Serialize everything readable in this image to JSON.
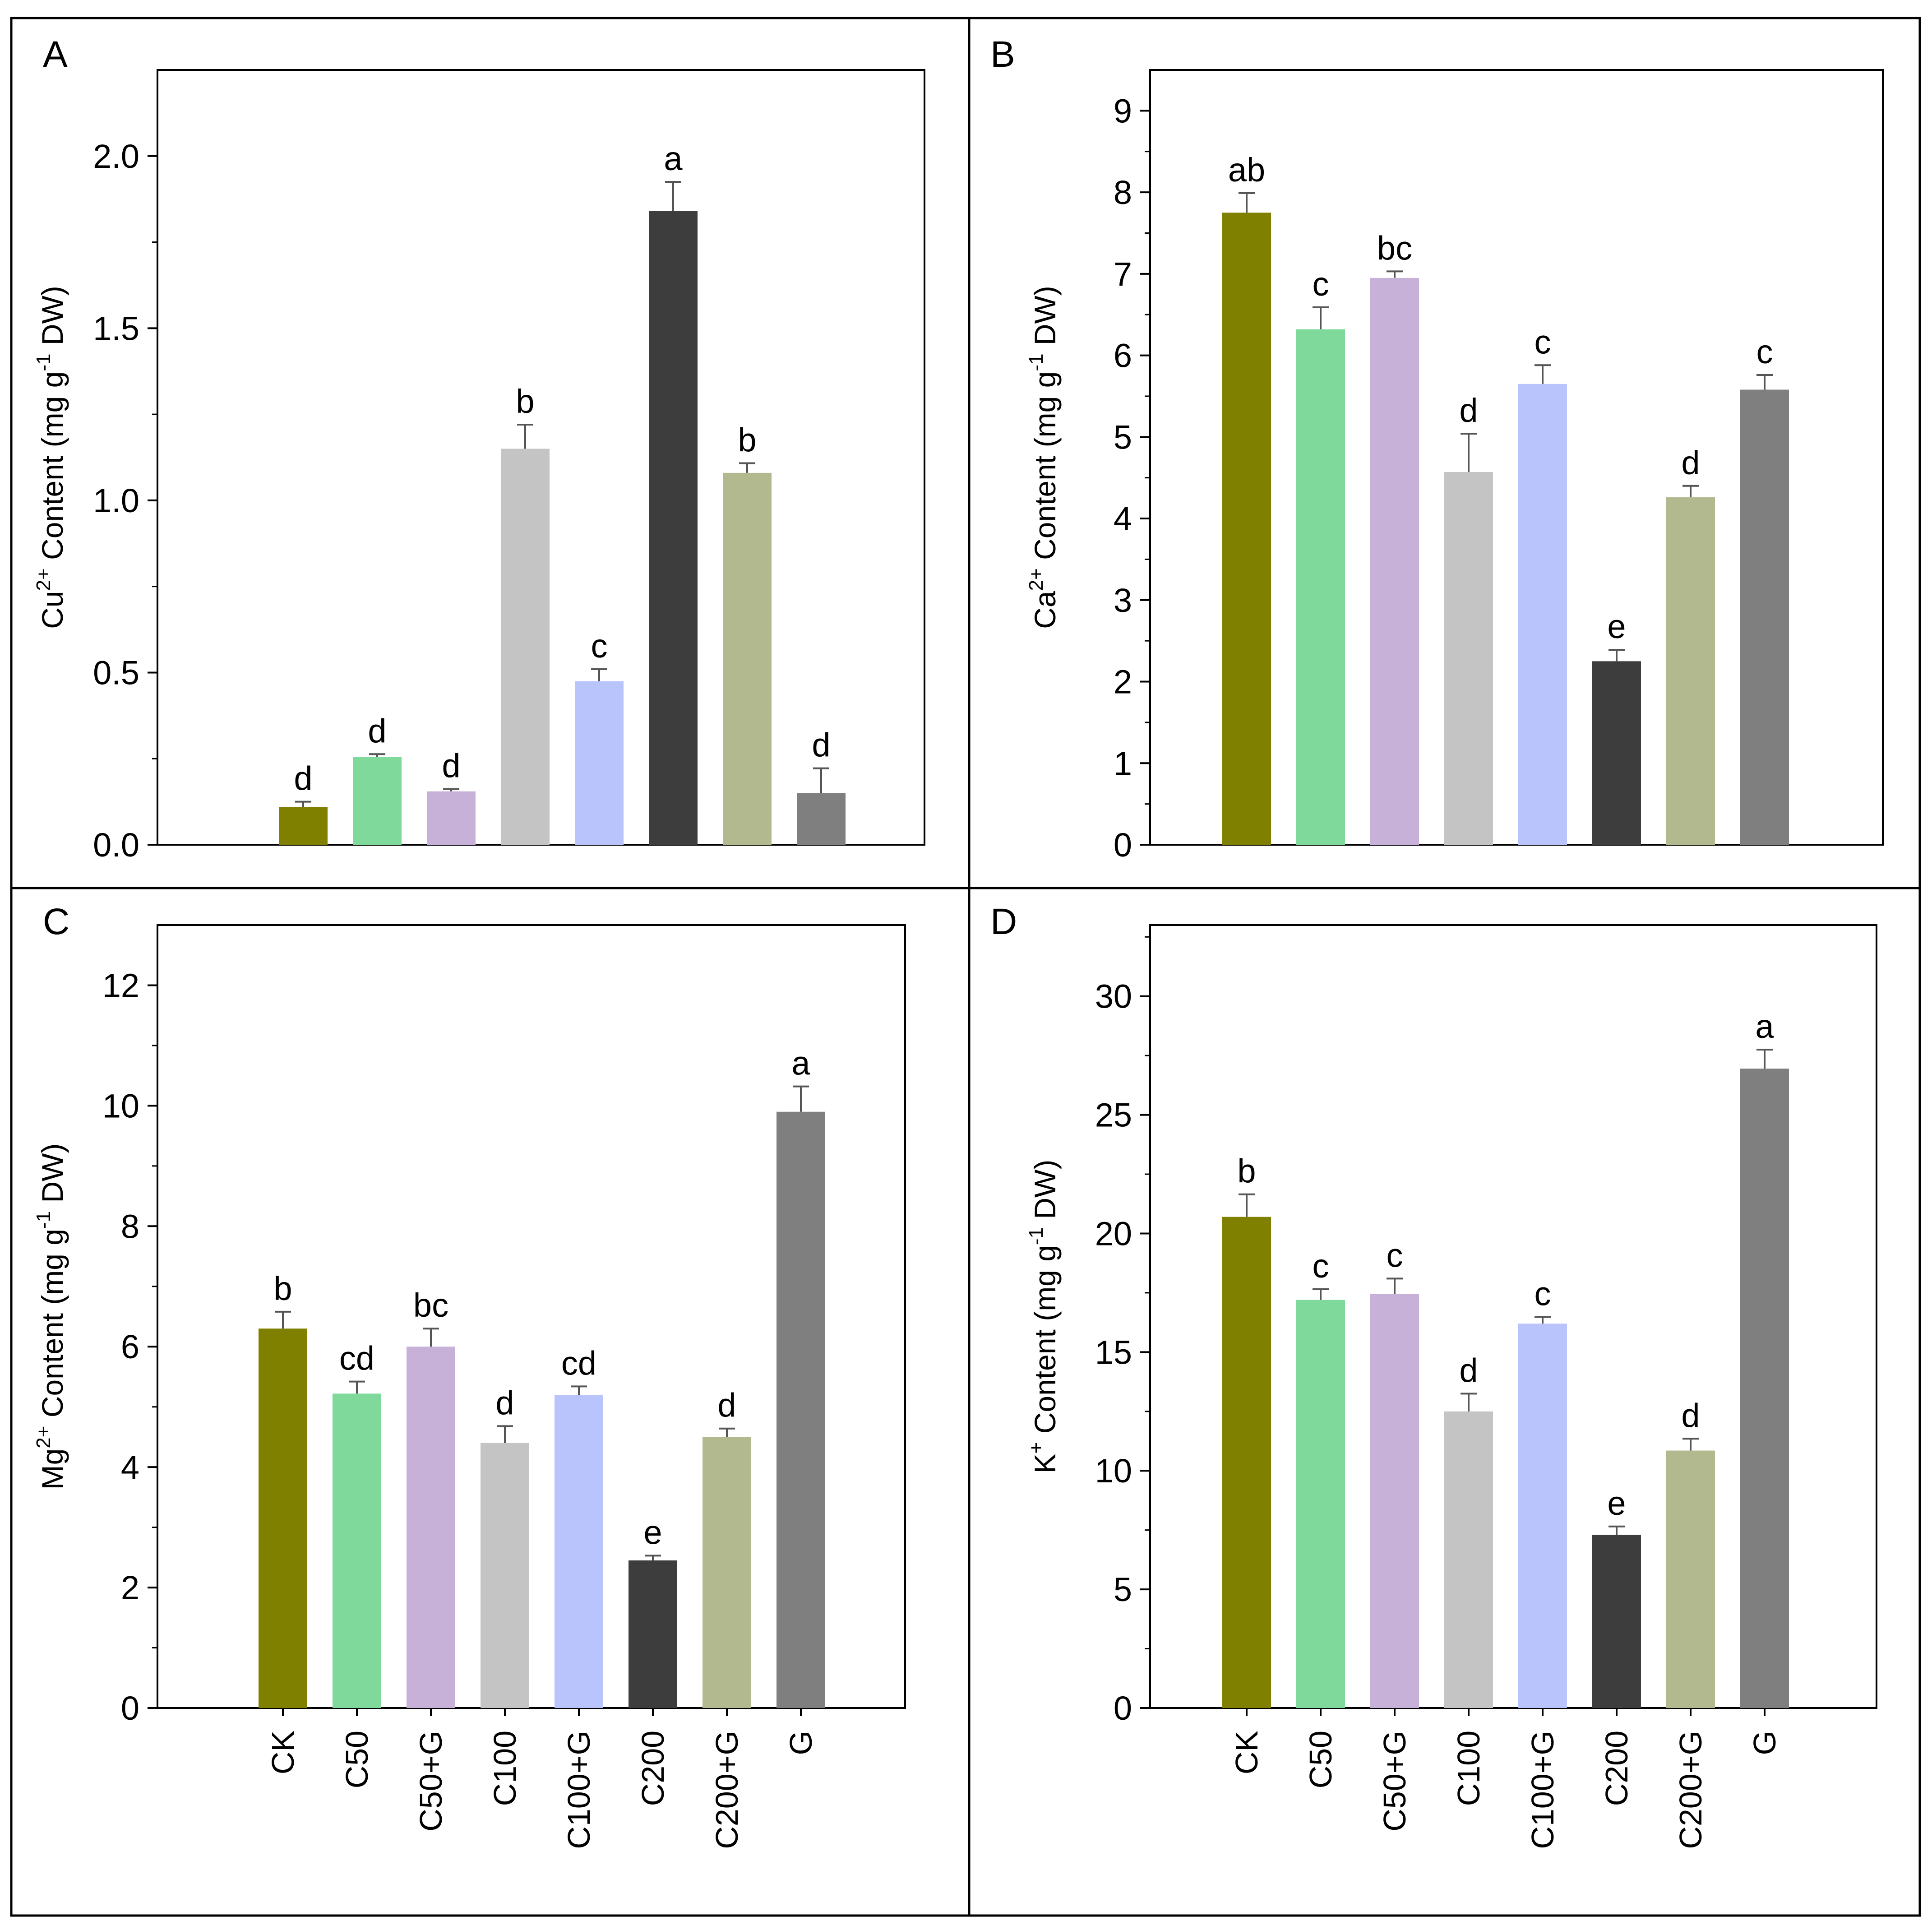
{
  "chart_data": [
    {
      "panel": "A",
      "type": "bar",
      "ylabel": {
        "ion": "Cu",
        "charge": "2+",
        "rest_before": " Content (mg g",
        "rest_exp": "-1",
        "rest_after": " DW)"
      },
      "categories": [
        "CK",
        "C50",
        "C50+G",
        "C100",
        "C100+G",
        "C200",
        "C200+G",
        "G"
      ],
      "values": [
        0.11,
        0.255,
        0.155,
        1.15,
        0.475,
        1.84,
        1.08,
        0.15
      ],
      "errors": [
        0.015,
        0.008,
        0.007,
        0.07,
        0.035,
        0.085,
        0.028,
        0.072
      ],
      "letters": [
        "d",
        "d",
        "d",
        "b",
        "c",
        "a",
        "b",
        "d"
      ],
      "ylim": [
        0,
        2.25
      ],
      "yticks": [
        0,
        0.5,
        1.0,
        1.5,
        2.0
      ],
      "ytick_labels": [
        "0.0",
        "0.5",
        "1.0",
        "1.5",
        "2.0"
      ],
      "show_categories": false
    },
    {
      "panel": "B",
      "type": "bar",
      "ylabel": {
        "ion": "Ca",
        "charge": "2+",
        "rest_before": " Content (mg g",
        "rest_exp": "-1",
        "rest_after": " DW)"
      },
      "categories": [
        "CK",
        "C50",
        "C50+G",
        "C100",
        "C100+G",
        "C200",
        "C200+G",
        "G"
      ],
      "values": [
        7.75,
        6.32,
        6.95,
        4.57,
        5.65,
        2.25,
        4.26,
        5.58
      ],
      "errors": [
        0.24,
        0.27,
        0.08,
        0.47,
        0.23,
        0.14,
        0.14,
        0.18
      ],
      "letters": [
        "ab",
        "c",
        "bc",
        "d",
        "c",
        "e",
        "d",
        "c"
      ],
      "ylim": [
        0,
        9.5
      ],
      "yticks": [
        0,
        1,
        2,
        3,
        4,
        5,
        6,
        7,
        8,
        9
      ],
      "ytick_labels": [
        "0",
        "1",
        "2",
        "3",
        "4",
        "5",
        "6",
        "7",
        "8",
        "9"
      ],
      "show_categories": false
    },
    {
      "panel": "C",
      "type": "bar",
      "ylabel": {
        "ion": "Mg",
        "charge": "2+",
        "rest_before": " Content (mg g",
        "rest_exp": "-1",
        "rest_after": " DW)"
      },
      "categories": [
        "CK",
        "C50",
        "C50+G",
        "C100",
        "C100+G",
        "C200",
        "C200+G",
        "G"
      ],
      "values": [
        6.3,
        5.22,
        6.0,
        4.4,
        5.2,
        2.45,
        4.5,
        9.9
      ],
      "errors": [
        0.28,
        0.2,
        0.3,
        0.28,
        0.14,
        0.08,
        0.14,
        0.42
      ],
      "letters": [
        "b",
        "cd",
        "bc",
        "d",
        "cd",
        "e",
        "d",
        "a"
      ],
      "ylim": [
        0,
        13
      ],
      "yticks": [
        0,
        2,
        4,
        6,
        8,
        10,
        12
      ],
      "ytick_labels": [
        "0",
        "2",
        "4",
        "6",
        "8",
        "10",
        "12"
      ],
      "show_categories": true
    },
    {
      "panel": "D",
      "type": "bar",
      "ylabel": {
        "ion": "K",
        "charge": "+",
        "rest_before": " Content (mg g",
        "rest_exp": "-1",
        "rest_after": " DW)"
      },
      "categories": [
        "CK",
        "C50",
        "C50+G",
        "C100",
        "C100+G",
        "C200",
        "C200+G",
        "G"
      ],
      "values": [
        20.7,
        17.2,
        17.45,
        12.5,
        16.2,
        7.3,
        10.85,
        26.95
      ],
      "errors": [
        0.95,
        0.45,
        0.65,
        0.75,
        0.28,
        0.35,
        0.5,
        0.8
      ],
      "letters": [
        "b",
        "c",
        "c",
        "d",
        "c",
        "e",
        "d",
        "a"
      ],
      "ylim": [
        0,
        33
      ],
      "yticks": [
        0,
        5,
        10,
        15,
        20,
        25,
        30
      ],
      "ytick_labels": [
        "0",
        "5",
        "10",
        "15",
        "20",
        "25",
        "30"
      ],
      "show_categories": true
    }
  ],
  "colors": [
    "#7f7f00",
    "#7ed99b",
    "#c8b1d9",
    "#c4c4c4",
    "#b8c4fb",
    "#3d3d3d",
    "#b2b98f",
    "#7f7f7f"
  ]
}
